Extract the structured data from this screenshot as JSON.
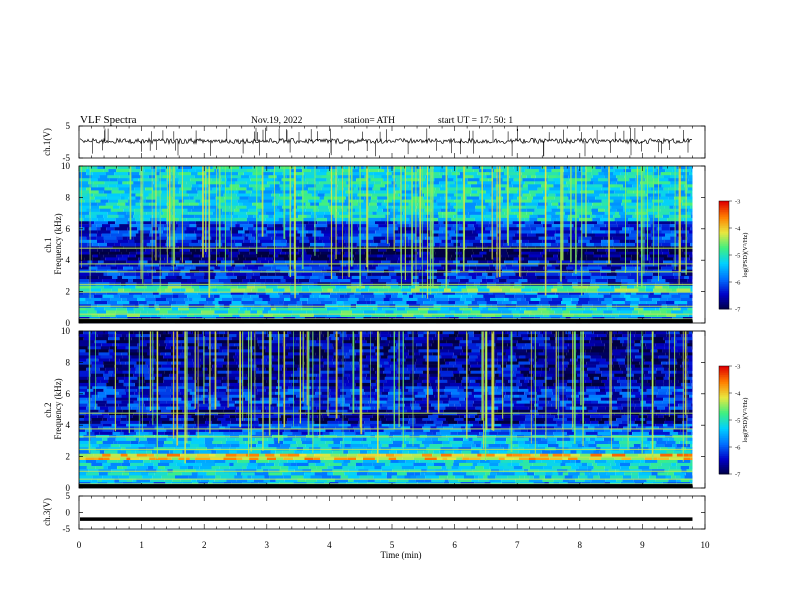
{
  "header": {
    "title": "VLF Spectra",
    "date": "Nov.19, 2022",
    "station": "station= ATH",
    "start": "start UT = 17: 50: 1"
  },
  "colors": {
    "colormap": [
      "#000040",
      "#0000c8",
      "#0070ff",
      "#00d0ff",
      "#40f080",
      "#e8e840",
      "#ff8000",
      "#e00000",
      "#ffffff"
    ],
    "trace": "#000000"
  },
  "chart_data": [
    {
      "type": "line",
      "id": "ch1-waveform",
      "ylabel": "ch.1(V)",
      "ylim": [
        -5,
        5
      ],
      "yticks": [
        "5",
        "-5"
      ],
      "x_range": [
        0,
        9.8
      ],
      "baseline": 0.3,
      "description_values": "noisy waveform around 0 V with occasional spikes to ±3 V"
    },
    {
      "type": "heatmap",
      "id": "ch1-spectrogram",
      "ylabel": "ch.1\nFrequency (kHz)",
      "ylim": [
        0,
        10
      ],
      "yticks": [
        "0",
        "2",
        "4",
        "6",
        "8",
        "10"
      ],
      "x_range": [
        0,
        9.8
      ],
      "colorbar": {
        "label": "log(PSD)(V²/Hz)",
        "ticks": [
          "-3",
          "-4",
          "-5",
          "-6",
          "-7"
        ],
        "range": [
          -7,
          -3
        ]
      },
      "bands": [
        {
          "f": [
            0.0,
            0.4
          ],
          "v": -6.2
        },
        {
          "f": [
            0.4,
            1.0
          ],
          "v": -5.0
        },
        {
          "f": [
            1.0,
            2.0
          ],
          "v": -5.8
        },
        {
          "f": [
            2.0,
            2.4
          ],
          "v": -4.8
        },
        {
          "f": [
            2.4,
            4.0
          ],
          "v": -6.3
        },
        {
          "f": [
            4.0,
            4.9
          ],
          "v": -6.9
        },
        {
          "f": [
            4.9,
            6.5
          ],
          "v": -6.2
        },
        {
          "f": [
            6.5,
            10.0
          ],
          "v": -5.2
        }
      ]
    },
    {
      "type": "heatmap",
      "id": "ch2-spectrogram",
      "ylabel": "ch.2\nFrequency (kHz)",
      "ylim": [
        0,
        10
      ],
      "yticks": [
        "0",
        "2",
        "4",
        "6",
        "8",
        "10"
      ],
      "x_range": [
        0,
        9.8
      ],
      "colorbar": {
        "label": "log(PSD)(V²/Hz)",
        "ticks": [
          "-3",
          "-4",
          "-5",
          "-6",
          "-7"
        ],
        "range": [
          -7,
          -3
        ]
      },
      "bands": [
        {
          "f": [
            0.0,
            0.4
          ],
          "v": -5.6
        },
        {
          "f": [
            0.4,
            1.8
          ],
          "v": -5.3
        },
        {
          "f": [
            1.8,
            2.2
          ],
          "v": -4.0
        },
        {
          "f": [
            2.2,
            3.4
          ],
          "v": -5.4
        },
        {
          "f": [
            3.4,
            4.1
          ],
          "v": -6.0
        },
        {
          "f": [
            4.1,
            5.0
          ],
          "v": -6.6
        },
        {
          "f": [
            5.0,
            6.5
          ],
          "v": -6.2
        },
        {
          "f": [
            6.5,
            10.0
          ],
          "v": -6.6
        }
      ]
    },
    {
      "type": "line",
      "id": "ch3-waveform",
      "ylabel": "ch.3(V)",
      "ylim": [
        -5,
        5
      ],
      "yticks": [
        "5",
        "0",
        "-5"
      ],
      "x_range": [
        0,
        9.8
      ],
      "baseline": -2.0
    }
  ],
  "xaxis": {
    "label": "Time (min)",
    "ticks": [
      "0",
      "1",
      "2",
      "3",
      "4",
      "5",
      "6",
      "7",
      "8",
      "9",
      "10"
    ],
    "range": [
      0,
      10
    ]
  }
}
